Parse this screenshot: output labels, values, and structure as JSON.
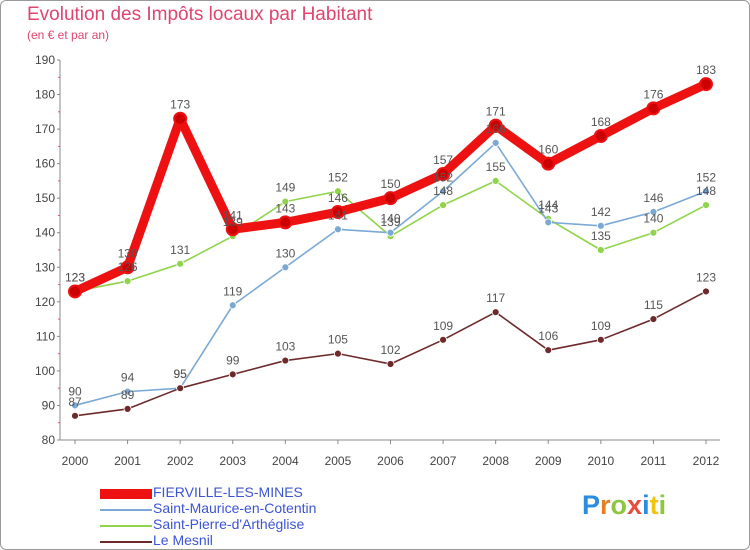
{
  "title": "Evolution des Impôts locaux par Habitant",
  "subtitle": "(en € et par an)",
  "chart_data": {
    "type": "line",
    "title": "Evolution des Impôts locaux par Habitant",
    "subtitle": "(en € et par an)",
    "categories": [
      "2000",
      "2001",
      "2002",
      "2003",
      "2004",
      "2005",
      "2006",
      "2007",
      "2008",
      "2009",
      "2010",
      "2011",
      "2012"
    ],
    "yticks": [
      80,
      90,
      100,
      110,
      120,
      130,
      140,
      150,
      160,
      170,
      180,
      190
    ],
    "ylim": [
      80,
      190
    ],
    "grid": false,
    "legend_position": "bottom-left",
    "series": [
      {
        "name": "Saint-Pierre-d'Arthéglise",
        "color": "#8fd44a",
        "values": [
          123,
          126,
          131,
          139,
          149,
          152,
          139,
          148,
          155,
          144,
          135,
          140,
          148
        ]
      },
      {
        "name": "Saint-Maurice-en-Cotentin",
        "color": "#7aa9d6",
        "values": [
          90,
          94,
          95,
          119,
          130,
          141,
          140,
          152,
          166,
          143,
          142,
          146,
          152
        ]
      },
      {
        "name": "Le Mesnil",
        "color": "#6e2a2a",
        "values": [
          87,
          89,
          95,
          99,
          103,
          105,
          102,
          109,
          117,
          106,
          109,
          115,
          123
        ]
      },
      {
        "name": "FIERVILLE-LES-MINES",
        "color": "#ee1111",
        "values": [
          123,
          130,
          173,
          141,
          143,
          146,
          150,
          157,
          171,
          160,
          168,
          176,
          183
        ]
      }
    ]
  },
  "legend": [
    {
      "label": "FIERVILLE-LES-MINES",
      "color": "#ee1111"
    },
    {
      "label": "Saint-Maurice-en-Cotentin",
      "color": "#7aa9d6"
    },
    {
      "label": "Saint-Pierre-d'Arthéglise",
      "color": "#8fd44a"
    },
    {
      "label": "Le Mesnil",
      "color": "#6e2a2a"
    }
  ],
  "logo": {
    "letters": [
      "P",
      "r",
      "o",
      "x",
      "i",
      "t",
      "i"
    ],
    "colors": [
      "#2a8de0",
      "#e67e22",
      "#8dc63f",
      "#e74c3c",
      "#2a8de0",
      "#f1c40f",
      "#8dc63f"
    ]
  }
}
